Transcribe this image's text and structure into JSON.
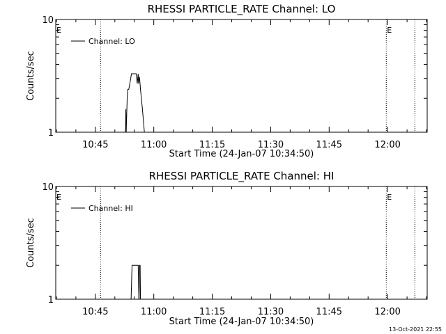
{
  "footer_timestamp": "13-Oct-2021 22:55",
  "chart_data": [
    {
      "type": "line",
      "title": "RHESSI PARTICLE_RATE Channel: LO",
      "ylabel": "Counts/sec",
      "xlabel": "Start Time (24-Jan-07 10:34:50)",
      "yscale": "log",
      "ylim": [
        1,
        10
      ],
      "yticks": [
        {
          "value": 1,
          "label": "1"
        },
        {
          "value": 10,
          "label": "10"
        }
      ],
      "xlim": [
        "10:34:50",
        "12:10:10"
      ],
      "xticks": [
        "10:45",
        "11:00",
        "11:15",
        "11:30",
        "11:45",
        "12:00"
      ],
      "grid": false,
      "legend_location": "upper-left",
      "series": [
        {
          "name": "Channel: LO",
          "x": [
            "10:52:45",
            "10:52:50",
            "10:52:55",
            "10:53:10",
            "10:53:20",
            "10:53:35",
            "10:54:05",
            "10:54:15",
            "10:55:30",
            "10:55:45",
            "10:56:00",
            "10:56:05",
            "10:56:20",
            "10:56:35",
            "10:57:05",
            "10:57:35"
          ],
          "y": [
            1,
            1.6,
            1,
            2.0,
            2.4,
            2.4,
            3.0,
            3.3,
            3.3,
            2.7,
            3.3,
            2.7,
            3.1,
            2.4,
            1.6,
            1
          ]
        }
      ],
      "annotations": [
        {
          "text": "E",
          "time": "10:34:50",
          "dotted_line": false
        },
        {
          "text": "",
          "time": "10:46:20",
          "dotted_line": true
        },
        {
          "text": "E",
          "time": "11:59:40",
          "dotted_line": true
        },
        {
          "text": "",
          "time": "12:07:00",
          "dotted_line": true
        }
      ]
    },
    {
      "type": "line",
      "title": "RHESSI PARTICLE_RATE Channel: HI",
      "ylabel": "Counts/sec",
      "xlabel": "Start Time (24-Jan-07 10:34:50)",
      "yscale": "log",
      "ylim": [
        1,
        10
      ],
      "yticks": [
        {
          "value": 1,
          "label": "1"
        },
        {
          "value": 10,
          "label": "10"
        }
      ],
      "xlim": [
        "10:34:50",
        "12:10:10"
      ],
      "xticks": [
        "10:45",
        "11:00",
        "11:15",
        "11:30",
        "11:45",
        "12:00"
      ],
      "grid": false,
      "legend_location": "upper-left",
      "series": [
        {
          "name": "Channel: HI",
          "x": [
            "10:54:10",
            "10:54:25",
            "10:56:00",
            "10:56:10",
            "10:56:15",
            "10:56:20",
            "10:56:30",
            "10:56:35",
            "10:56:50"
          ],
          "y": [
            1,
            2,
            2,
            1,
            1,
            2,
            2,
            1,
            1
          ]
        }
      ],
      "annotations": [
        {
          "text": "E",
          "time": "10:34:50",
          "dotted_line": false
        },
        {
          "text": "",
          "time": "10:46:20",
          "dotted_line": true
        },
        {
          "text": "E",
          "time": "11:59:40",
          "dotted_line": true
        },
        {
          "text": "",
          "time": "12:07:00",
          "dotted_line": true
        }
      ]
    }
  ]
}
